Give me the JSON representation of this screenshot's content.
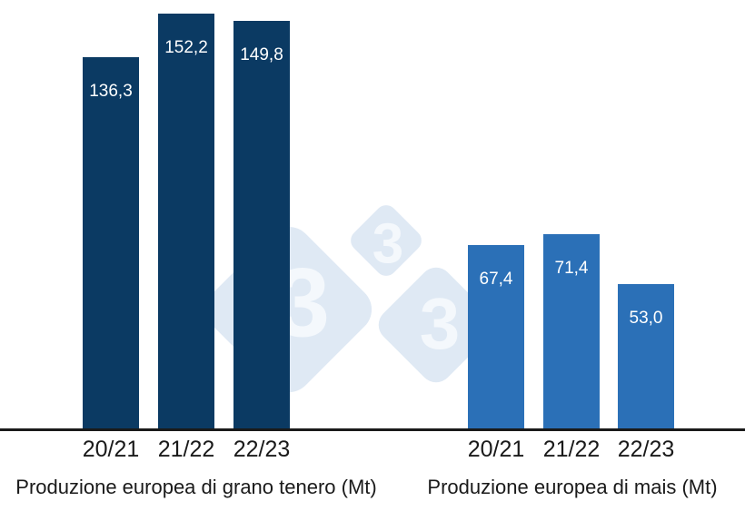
{
  "watermark": {
    "digits": [
      "3",
      "3",
      "3"
    ],
    "diamond_color": "#DFE9F4",
    "digit_color": "#F4F8FC"
  },
  "axis": {
    "color": "#1A1A1A"
  },
  "chart_data": [
    {
      "type": "bar",
      "title": "Produzione europea di grano tenero (Mt)",
      "categories": [
        "20/21",
        "21/22",
        "22/23"
      ],
      "values": [
        136.3,
        152.2,
        149.8
      ],
      "value_labels": [
        "136,3",
        "152,2",
        "149,8"
      ],
      "bar_color": "#0B3A63",
      "label_color": "#FFFFFF",
      "xlabel": "",
      "ylabel": "",
      "ylim": [
        0,
        157
      ],
      "grid": false,
      "legend": "none",
      "value_labels_position": "inside-top"
    },
    {
      "type": "bar",
      "title": "Produzione europea di mais (Mt)",
      "categories": [
        "20/21",
        "21/22",
        "22/23"
      ],
      "values": [
        67.4,
        71.4,
        53.0
      ],
      "value_labels": [
        "67,4",
        "71,4",
        "53,0"
      ],
      "bar_color": "#2B70B7",
      "label_color": "#FFFFFF",
      "xlabel": "",
      "ylabel": "",
      "ylim": [
        0,
        157
      ],
      "grid": false,
      "legend": "none",
      "value_labels_position": "inside-top"
    }
  ]
}
